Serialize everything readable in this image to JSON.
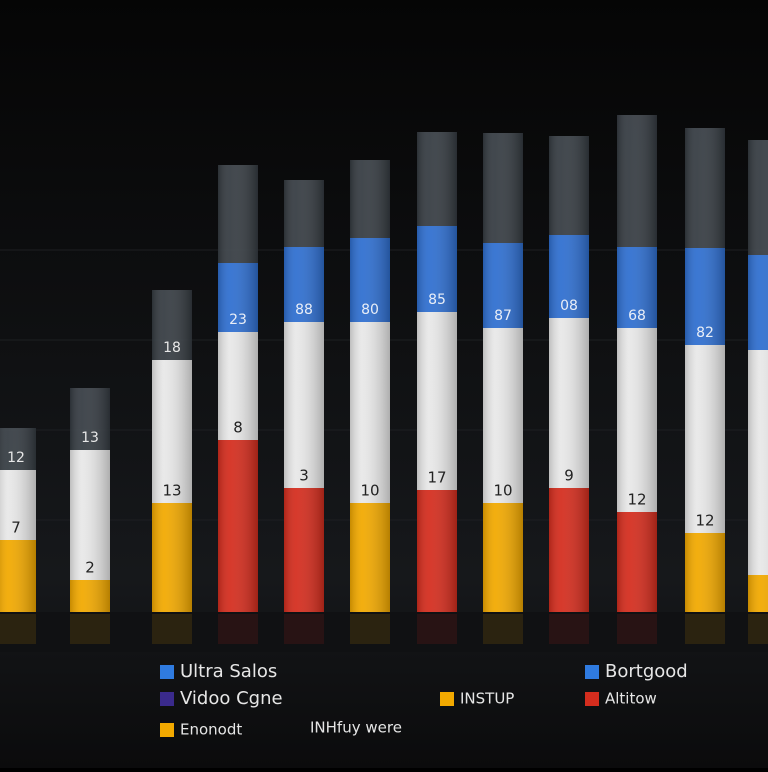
{
  "chart_data": {
    "type": "stacked-bar",
    "ylim": [
      0,
      500
    ],
    "series": [
      {
        "colors": [
          "#f2a900",
          "#f2a900",
          "#f2a900",
          "#d42d1e",
          "#d42d1e",
          "#f2a900",
          "#d42d1e",
          "#f2a900",
          "#d42d1e",
          "#d42d1e",
          "#f2a900",
          "#f2a900"
        ],
        "values": [
          72,
          32,
          109,
          172,
          124,
          109,
          122,
          109,
          124,
          100,
          79,
          37
        ]
      },
      {
        "color": "#e8e8e8",
        "values": [
          70,
          130,
          143,
          108,
          166,
          181,
          178,
          175,
          170,
          184,
          188,
          225
        ]
      },
      {
        "color": "#2f6fd0",
        "values": [
          0,
          0,
          0,
          69,
          75,
          84,
          86,
          85,
          83,
          81,
          97,
          95
        ]
      },
      {
        "color": "#3b4148",
        "values": [
          42,
          62,
          70,
          98,
          67,
          78,
          94,
          110,
          99,
          132,
          120,
          115
        ]
      }
    ],
    "bar_labels": [
      [
        "12",
        "7"
      ],
      [
        "13",
        "2"
      ],
      [
        "18",
        "13"
      ],
      [
        "23",
        "8"
      ],
      [
        "88",
        "3"
      ],
      [
        "80",
        "10"
      ],
      [
        "85",
        "17"
      ],
      [
        "87",
        "10"
      ],
      [
        "08",
        "9"
      ],
      [
        "68",
        "12"
      ],
      [
        "82",
        "12"
      ],
      null
    ],
    "legend": [
      {
        "text": "Ultra Salos",
        "color": "#2f7be0"
      },
      {
        "text": "Vidoo Cgne",
        "color": "#3a2a8c"
      },
      {
        "text": "Enonodt",
        "color": "#f2a900"
      },
      {
        "text": "INHfuy were",
        "color": null
      },
      {
        "text": "INSTUP",
        "color": "#f2a900"
      },
      {
        "text": "Bortgood",
        "color": "#2f7be0"
      },
      {
        "text": "Altitow",
        "color": "#d42d1e"
      }
    ]
  }
}
